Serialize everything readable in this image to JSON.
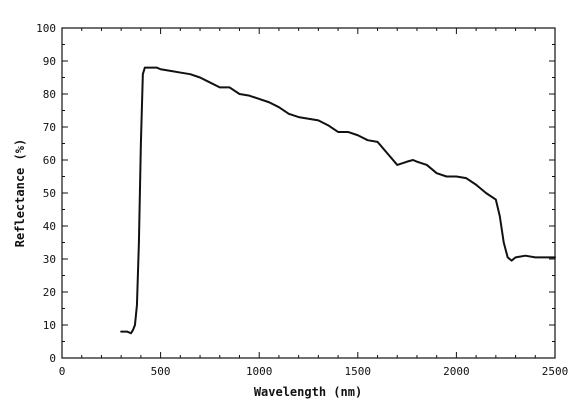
{
  "chart_data": {
    "type": "line",
    "title": "",
    "xlabel": "Wavelength (nm)",
    "ylabel": "Reflectance (%)",
    "xlim": [
      0,
      2500
    ],
    "ylim": [
      0,
      100
    ],
    "xticks": [
      0,
      500,
      1000,
      1500,
      2000,
      2500
    ],
    "yticks": [
      0,
      10,
      20,
      30,
      40,
      50,
      60,
      70,
      80,
      90,
      100
    ],
    "grid": false,
    "legend": "none",
    "line_color": "#111111",
    "series": [
      {
        "x": [
          300,
          330,
          350,
          360,
          370,
          380,
          390,
          400,
          410,
          420,
          450,
          480,
          500,
          550,
          600,
          650,
          700,
          750,
          800,
          850,
          900,
          950,
          1000,
          1050,
          1100,
          1150,
          1200,
          1250,
          1300,
          1350,
          1400,
          1450,
          1500,
          1550,
          1600,
          1650,
          1700,
          1750,
          1780,
          1800,
          1850,
          1900,
          1950,
          2000,
          2050,
          2100,
          2150,
          2200,
          2220,
          2240,
          2260,
          2280,
          2300,
          2350,
          2400,
          2450,
          2500
        ],
        "values": [
          8,
          8,
          7.5,
          8.5,
          10,
          16,
          35,
          65,
          86,
          88,
          88,
          88,
          87.5,
          87,
          86.5,
          86,
          85,
          83.5,
          82,
          82,
          80,
          79.5,
          78.5,
          77.5,
          76,
          74,
          73,
          72.5,
          72,
          70.5,
          68.5,
          68.5,
          67.5,
          66,
          65.5,
          62,
          58.5,
          59.5,
          60,
          59.5,
          58.5,
          56,
          55,
          55,
          54.5,
          52.5,
          50,
          48,
          43,
          35,
          30.5,
          29.5,
          30.5,
          31,
          30.5,
          30.5,
          30.5
        ]
      }
    ]
  }
}
